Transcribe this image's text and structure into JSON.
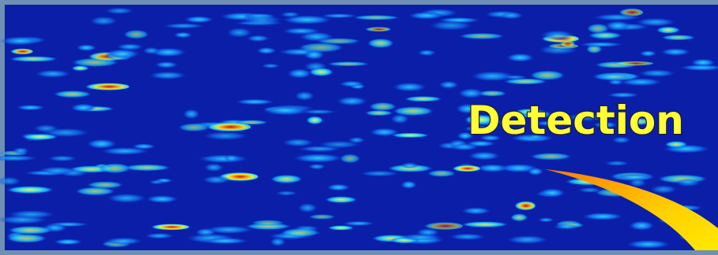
{
  "label": "Detection"
}
